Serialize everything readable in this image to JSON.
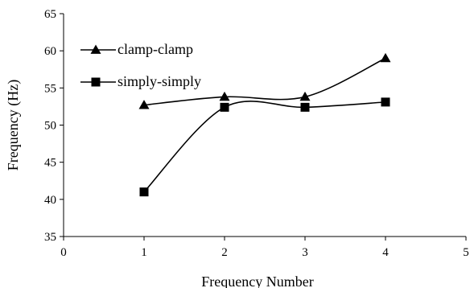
{
  "chart_data": {
    "type": "line",
    "title": "",
    "xlabel": "Frequency Number",
    "ylabel": "Frequency (Hz)",
    "xlim": [
      0,
      5
    ],
    "ylim": [
      35,
      65
    ],
    "x_ticks": [
      0,
      1,
      2,
      3,
      4,
      5
    ],
    "y_ticks": [
      35,
      40,
      45,
      50,
      55,
      60,
      65
    ],
    "grid": false,
    "legend_position": "top-left",
    "series": [
      {
        "name": "clamp-clamp",
        "marker": "triangle",
        "color": "#000000",
        "x": [
          1,
          2,
          3,
          4
        ],
        "y": [
          52.7,
          53.8,
          53.8,
          59.0
        ]
      },
      {
        "name": "simply-simply",
        "marker": "square",
        "color": "#000000",
        "x": [
          1,
          2,
          3,
          4
        ],
        "y": [
          41.0,
          52.4,
          52.4,
          53.1
        ]
      }
    ]
  }
}
